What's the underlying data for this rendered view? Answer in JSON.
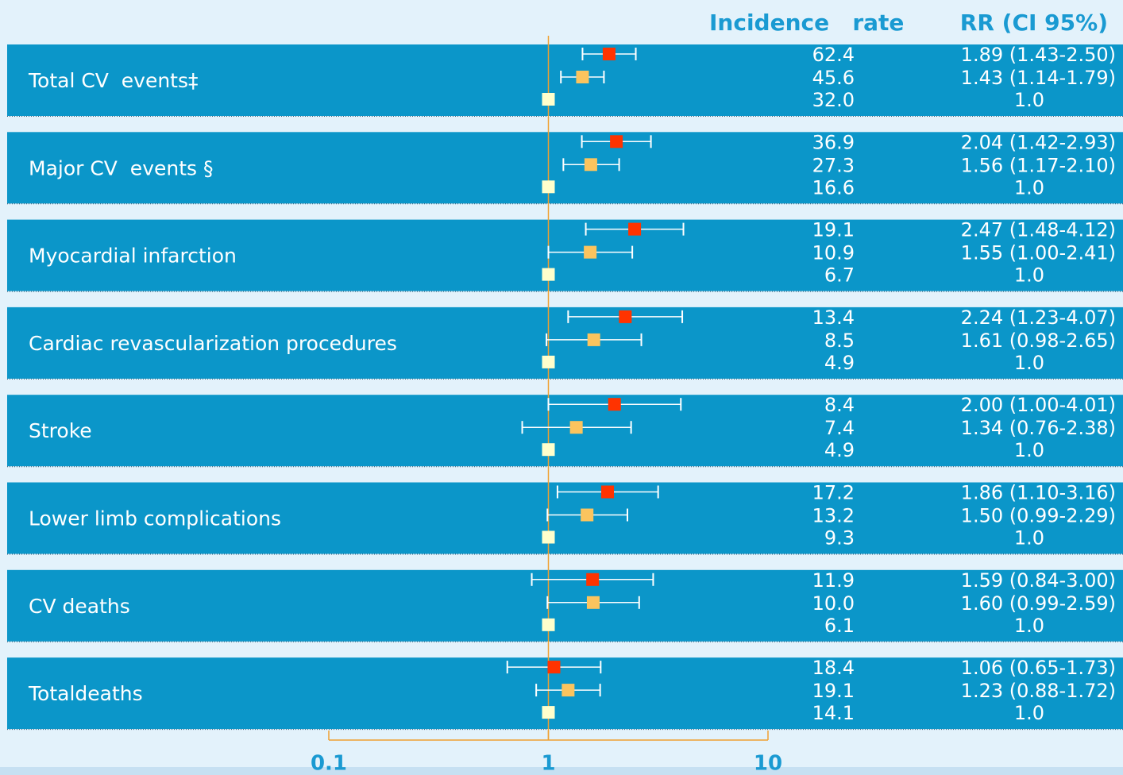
{
  "chart_data": {
    "type": "forest",
    "headers": {
      "incidence": "Incidence   rate",
      "rr": "RR (CI 95%)"
    },
    "log_scale": true,
    "xlim": [
      0.1,
      10
    ],
    "xticks": [
      0.1,
      1,
      10
    ],
    "reference_line": 1,
    "colors": [
      "#ff3300",
      "#fbc45e",
      "#ffffcc"
    ],
    "band_color": "#0b96c9",
    "axis_color": "#f0a030",
    "groups": [
      {
        "label": "Total CV  events‡",
        "rows": [
          {
            "incidence": "62.4",
            "value": 1.89,
            "ci": [
              1.43,
              2.5
            ],
            "value_label": "1.89 (1.43-2.50)"
          },
          {
            "incidence": "45.6",
            "value": 1.43,
            "ci": [
              1.14,
              1.79
            ],
            "value_label": "1.43 (1.14-1.79)"
          },
          {
            "incidence": "32.0",
            "value": 1.0,
            "value_label": "1.0"
          }
        ]
      },
      {
        "label": "Major CV  events §",
        "rows": [
          {
            "incidence": "36.9",
            "value": 2.04,
            "ci": [
              1.42,
              2.93
            ],
            "value_label": "2.04 (1.42-2.93)"
          },
          {
            "incidence": "27.3",
            "value": 1.56,
            "ci": [
              1.17,
              2.1
            ],
            "value_label": "1.56 (1.17-2.10)"
          },
          {
            "incidence": "16.6",
            "value": 1.0,
            "value_label": "1.0"
          }
        ]
      },
      {
        "label": "Myocardial infarction",
        "rows": [
          {
            "incidence": "19.1",
            "value": 2.47,
            "ci": [
              1.48,
              4.12
            ],
            "value_label": "2.47 (1.48-4.12)"
          },
          {
            "incidence": "10.9",
            "value": 1.55,
            "ci": [
              1.0,
              2.41
            ],
            "value_label": "1.55 (1.00-2.41)"
          },
          {
            "incidence": "6.7",
            "value": 1.0,
            "value_label": "1.0"
          }
        ]
      },
      {
        "label": "Cardiac revascularization procedures",
        "rows": [
          {
            "incidence": "13.4",
            "value": 2.24,
            "ci": [
              1.23,
              4.07
            ],
            "value_label": "2.24 (1.23-4.07)"
          },
          {
            "incidence": "8.5",
            "value": 1.61,
            "ci": [
              0.98,
              2.65
            ],
            "value_label": "1.61 (0.98-2.65)"
          },
          {
            "incidence": "4.9",
            "value": 1.0,
            "value_label": "1.0"
          }
        ]
      },
      {
        "label": "Stroke",
        "rows": [
          {
            "incidence": "8.4",
            "value": 2.0,
            "ci": [
              1.0,
              4.01
            ],
            "value_label": "2.00 (1.00-4.01)"
          },
          {
            "incidence": "7.4",
            "value": 1.34,
            "ci": [
              0.76,
              2.38
            ],
            "value_label": "1.34 (0.76-2.38)"
          },
          {
            "incidence": "4.9",
            "value": 1.0,
            "value_label": "1.0"
          }
        ]
      },
      {
        "label": "Lower limb complications",
        "rows": [
          {
            "incidence": "17.2",
            "value": 1.86,
            "ci": [
              1.1,
              3.16
            ],
            "value_label": "1.86 (1.10-3.16)"
          },
          {
            "incidence": "13.2",
            "value": 1.5,
            "ci": [
              0.99,
              2.29
            ],
            "value_label": "1.50 (0.99-2.29)"
          },
          {
            "incidence": "9.3",
            "value": 1.0,
            "value_label": "1.0"
          }
        ]
      },
      {
        "label": "CV deaths",
        "rows": [
          {
            "incidence": "11.9",
            "value": 1.59,
            "ci": [
              0.84,
              3.0
            ],
            "value_label": "1.59 (0.84-3.00)"
          },
          {
            "incidence": "10.0",
            "value": 1.6,
            "ci": [
              0.99,
              2.59
            ],
            "value_label": "1.60 (0.99-2.59)"
          },
          {
            "incidence": "6.1",
            "value": 1.0,
            "value_label": "1.0"
          }
        ]
      },
      {
        "label": "Totaldeaths",
        "rows": [
          {
            "incidence": "18.4",
            "value": 1.06,
            "ci": [
              0.65,
              1.73
            ],
            "value_label": "1.06 (0.65-1.73)"
          },
          {
            "incidence": "19.1",
            "value": 1.23,
            "ci": [
              0.88,
              1.72
            ],
            "value_label": "1.23 (0.88-1.72)"
          },
          {
            "incidence": "14.1",
            "value": 1.0,
            "value_label": "1.0"
          }
        ]
      }
    ]
  }
}
